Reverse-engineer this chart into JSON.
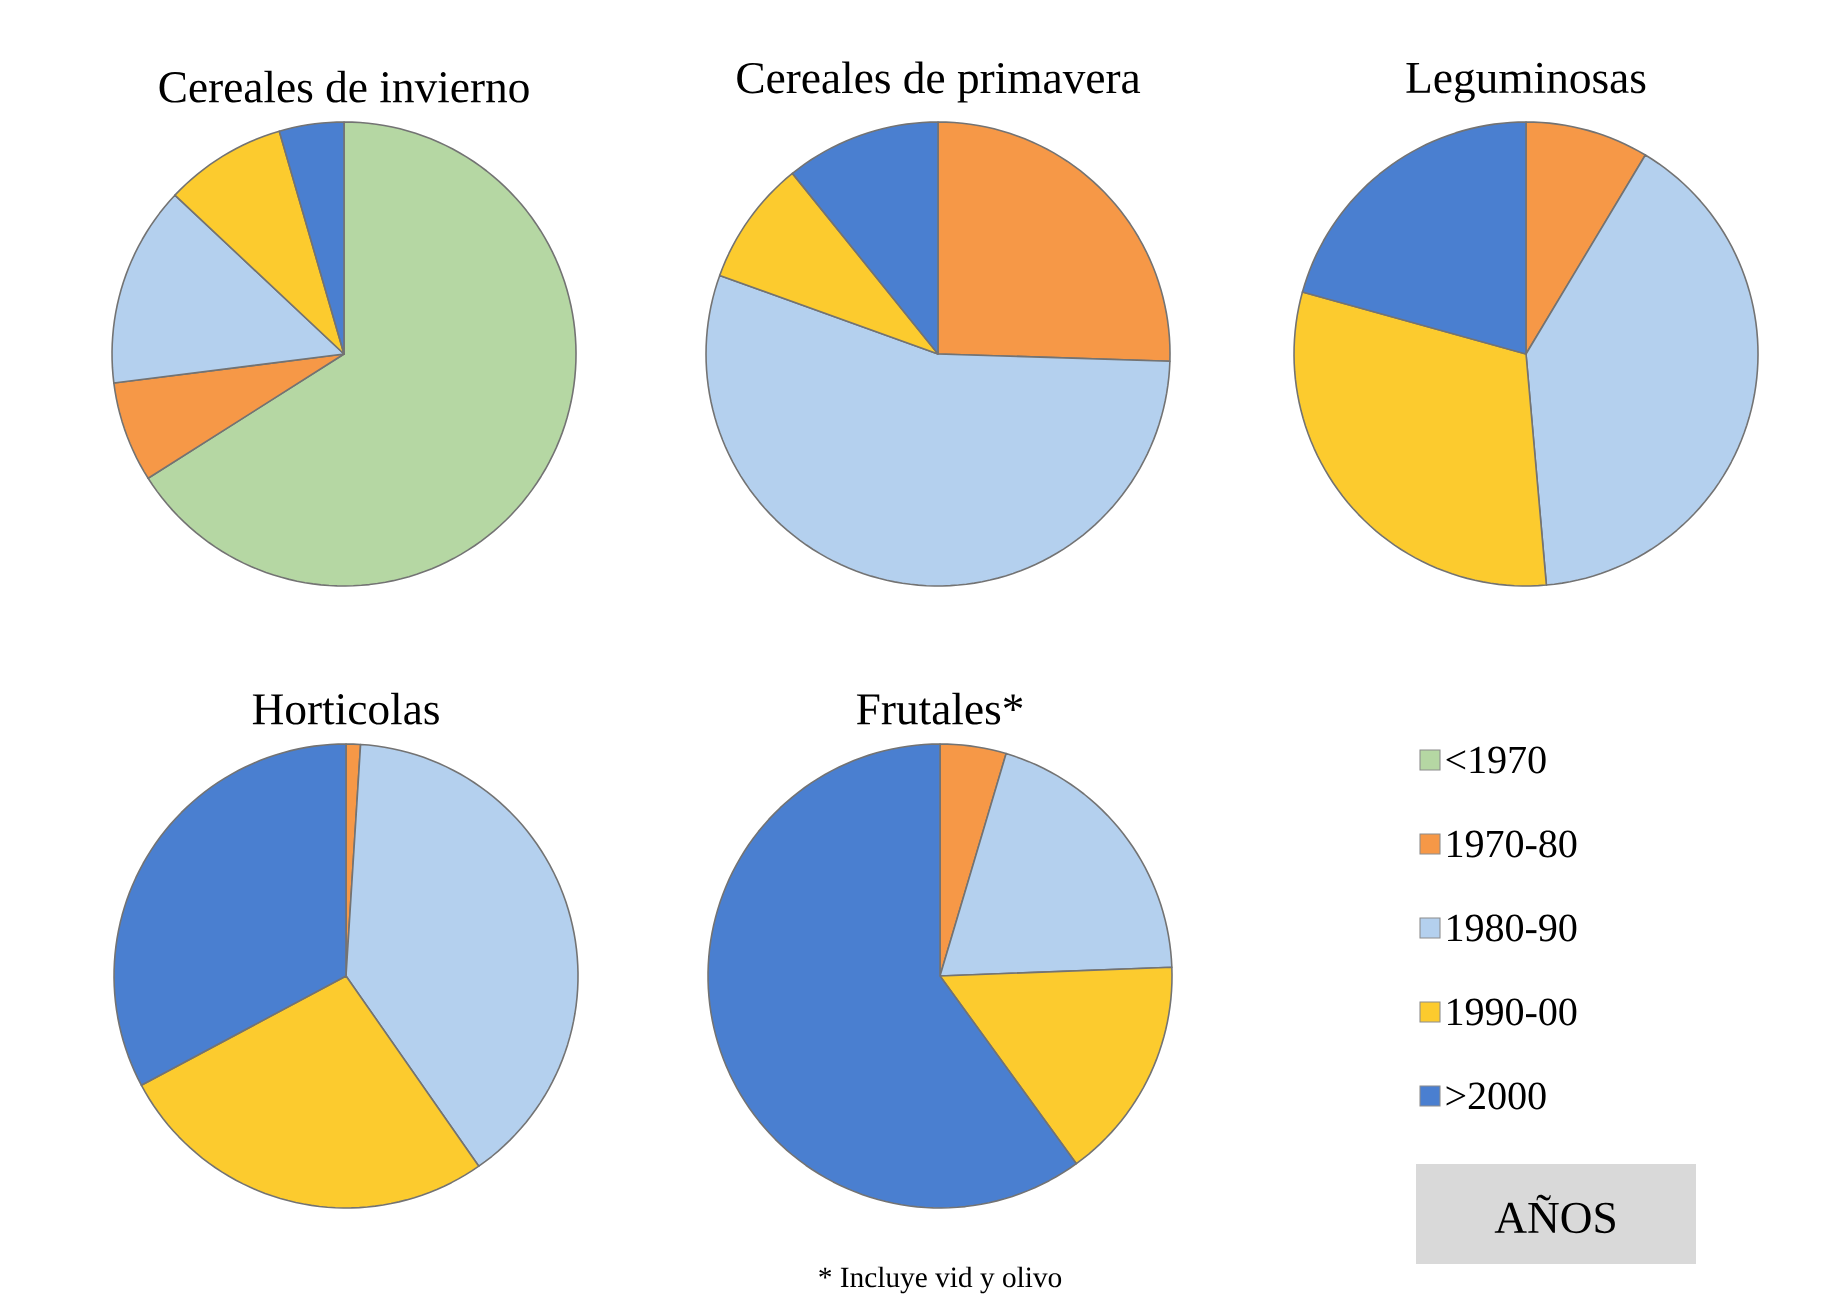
{
  "chart_data": [
    {
      "type": "pie",
      "title": "Cereales de invierno",
      "categories": [
        "<1970",
        "1970-80",
        "1980-90",
        "1990-00",
        ">2000"
      ],
      "values": [
        66,
        7,
        14,
        8.5,
        4.5
      ],
      "colors": [
        "#b5d7a3",
        "#f69847",
        "#b4d0ee",
        "#fccb2e",
        "#4a7fd0"
      ],
      "legend": "right",
      "legend_title": "AÑOS"
    },
    {
      "type": "pie",
      "title": "Cereales de primavera",
      "categories": [
        null,
        null,
        null,
        null,
        null
      ],
      "values": [
        0,
        25.5,
        55,
        8.7,
        10.8
      ],
      "colors": [
        "#b5d7a3",
        "#f69847",
        "#b4d0ee",
        "#fccb2e",
        "#4a7fd0"
      ]
    },
    {
      "type": "pie",
      "title": "Leguminosas",
      "categories": [
        null,
        null,
        null,
        null,
        null
      ],
      "values": [
        0,
        8.6,
        40,
        30.7,
        20.7
      ],
      "colors": [
        "#b5d7a3",
        "#f69847",
        "#b4d0ee",
        "#fccb2e",
        "#4a7fd0"
      ]
    },
    {
      "type": "pie",
      "title": "Horticolas",
      "categories": [
        null,
        null,
        null,
        null,
        null
      ],
      "values": [
        0,
        1,
        39.3,
        26.9,
        32.8
      ],
      "colors": [
        "#b5d7a3",
        "#f69847",
        "#b4d0ee",
        "#fccb2e",
        "#4a7fd0"
      ]
    },
    {
      "type": "pie",
      "title": "Frutales*",
      "categories": [
        null,
        null,
        null,
        null,
        null
      ],
      "values": [
        0,
        4.6,
        19.8,
        15.6,
        60
      ],
      "colors": [
        "#b5d7a3",
        "#f69847",
        "#b4d0ee",
        "#fccb2e",
        "#4a7fd0"
      ],
      "annotations": [
        "* Incluye vid y olivo"
      ]
    }
  ]
}
